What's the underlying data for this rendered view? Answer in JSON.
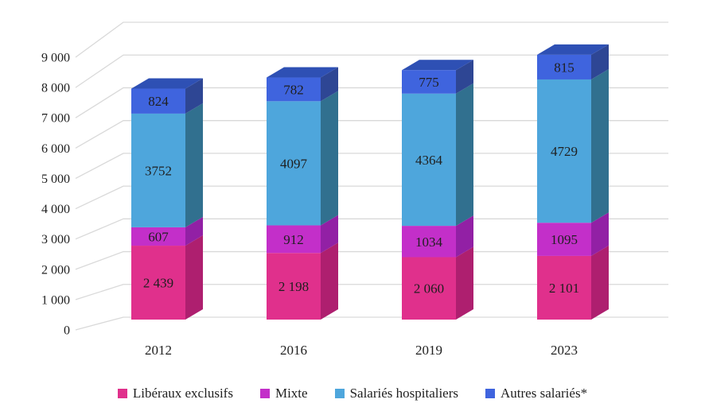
{
  "chart_data": {
    "type": "bar",
    "variant": "3d-stacked-column",
    "title": "",
    "xlabel": "",
    "ylabel": "",
    "categories": [
      "2012",
      "2016",
      "2019",
      "2023"
    ],
    "series": [
      {
        "name": "Libéraux exclusifs",
        "color": "#E0308C",
        "side_color": "#AE1F6F",
        "values": [
          2439,
          2198,
          2060,
          2101
        ],
        "value_labels": [
          "2 439",
          "2 198",
          "2 060",
          "2 101"
        ]
      },
      {
        "name": "Mixte",
        "color": "#C32FC9",
        "side_color": "#9220A5",
        "values": [
          607,
          912,
          1034,
          1095
        ],
        "value_labels": [
          "607",
          "912",
          "1034",
          "1095"
        ]
      },
      {
        "name": "Salariés hospitaliers",
        "color": "#4EA6DC",
        "side_color": "#31708F",
        "values": [
          3752,
          4097,
          4364,
          4729
        ],
        "value_labels": [
          "3752",
          "4097",
          "4364",
          "4729"
        ]
      },
      {
        "name": "Autres salariés*",
        "color": "#3F64DE",
        "side_color": "#2E4694",
        "top_color": "#2E50B4",
        "values": [
          824,
          782,
          775,
          815
        ],
        "value_labels": [
          "824",
          "782",
          "775",
          "815"
        ]
      }
    ],
    "y_axis": {
      "min": 0,
      "max": 9000,
      "step": 1000,
      "tick_labels": [
        "0",
        "1 000",
        "2 000",
        "3 000",
        "4 000",
        "5 000",
        "6 000",
        "7 000",
        "8 000",
        "9 000"
      ]
    },
    "grid": {
      "visible": true,
      "color": "#D9D9D9"
    },
    "legend": {
      "position": "bottom"
    },
    "label_color": "#1f1f1f"
  }
}
